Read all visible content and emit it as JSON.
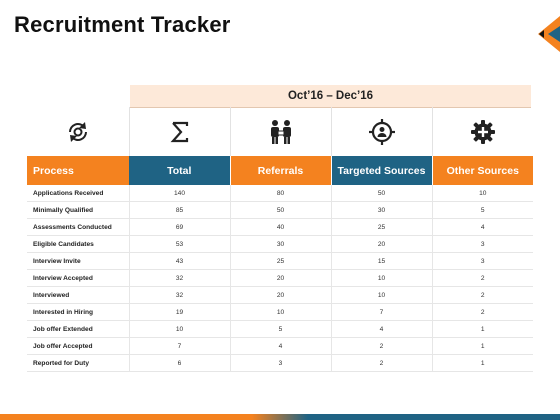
{
  "title": "Recruitment Tracker",
  "period": "Oct’16 – Dec’16",
  "icons": [
    "refresh-gear-icon",
    "sigma-icon",
    "referral-people-icon",
    "target-person-icon",
    "gear-plus-icon"
  ],
  "headers": [
    "Process",
    "Total",
    "Referrals",
    "Targeted Sources",
    "Other Sources"
  ],
  "rows": [
    [
      "Applications Received",
      "140",
      "80",
      "50",
      "10"
    ],
    [
      "Minimally Qualified",
      "85",
      "50",
      "30",
      "5"
    ],
    [
      "Assessments Conducted",
      "69",
      "40",
      "25",
      "4"
    ],
    [
      "Eligible Candidates",
      "53",
      "30",
      "20",
      "3"
    ],
    [
      "Interview Invite",
      "43",
      "25",
      "15",
      "3"
    ],
    [
      "Interview Accepted",
      "32",
      "20",
      "10",
      "2"
    ],
    [
      "Interviewed",
      "32",
      "20",
      "10",
      "2"
    ],
    [
      "Interested in Hiring",
      "19",
      "10",
      "7",
      "2"
    ],
    [
      "Job offer Extended",
      "10",
      "5",
      "4",
      "1"
    ],
    [
      "Job offer Accepted",
      "7",
      "4",
      "2",
      "1"
    ],
    [
      "Reported for Duty",
      "6",
      "3",
      "2",
      "1"
    ]
  ],
  "colors": {
    "orange": "#f4821f",
    "teal": "#1f6384",
    "period_bg": "#fde9d9"
  }
}
